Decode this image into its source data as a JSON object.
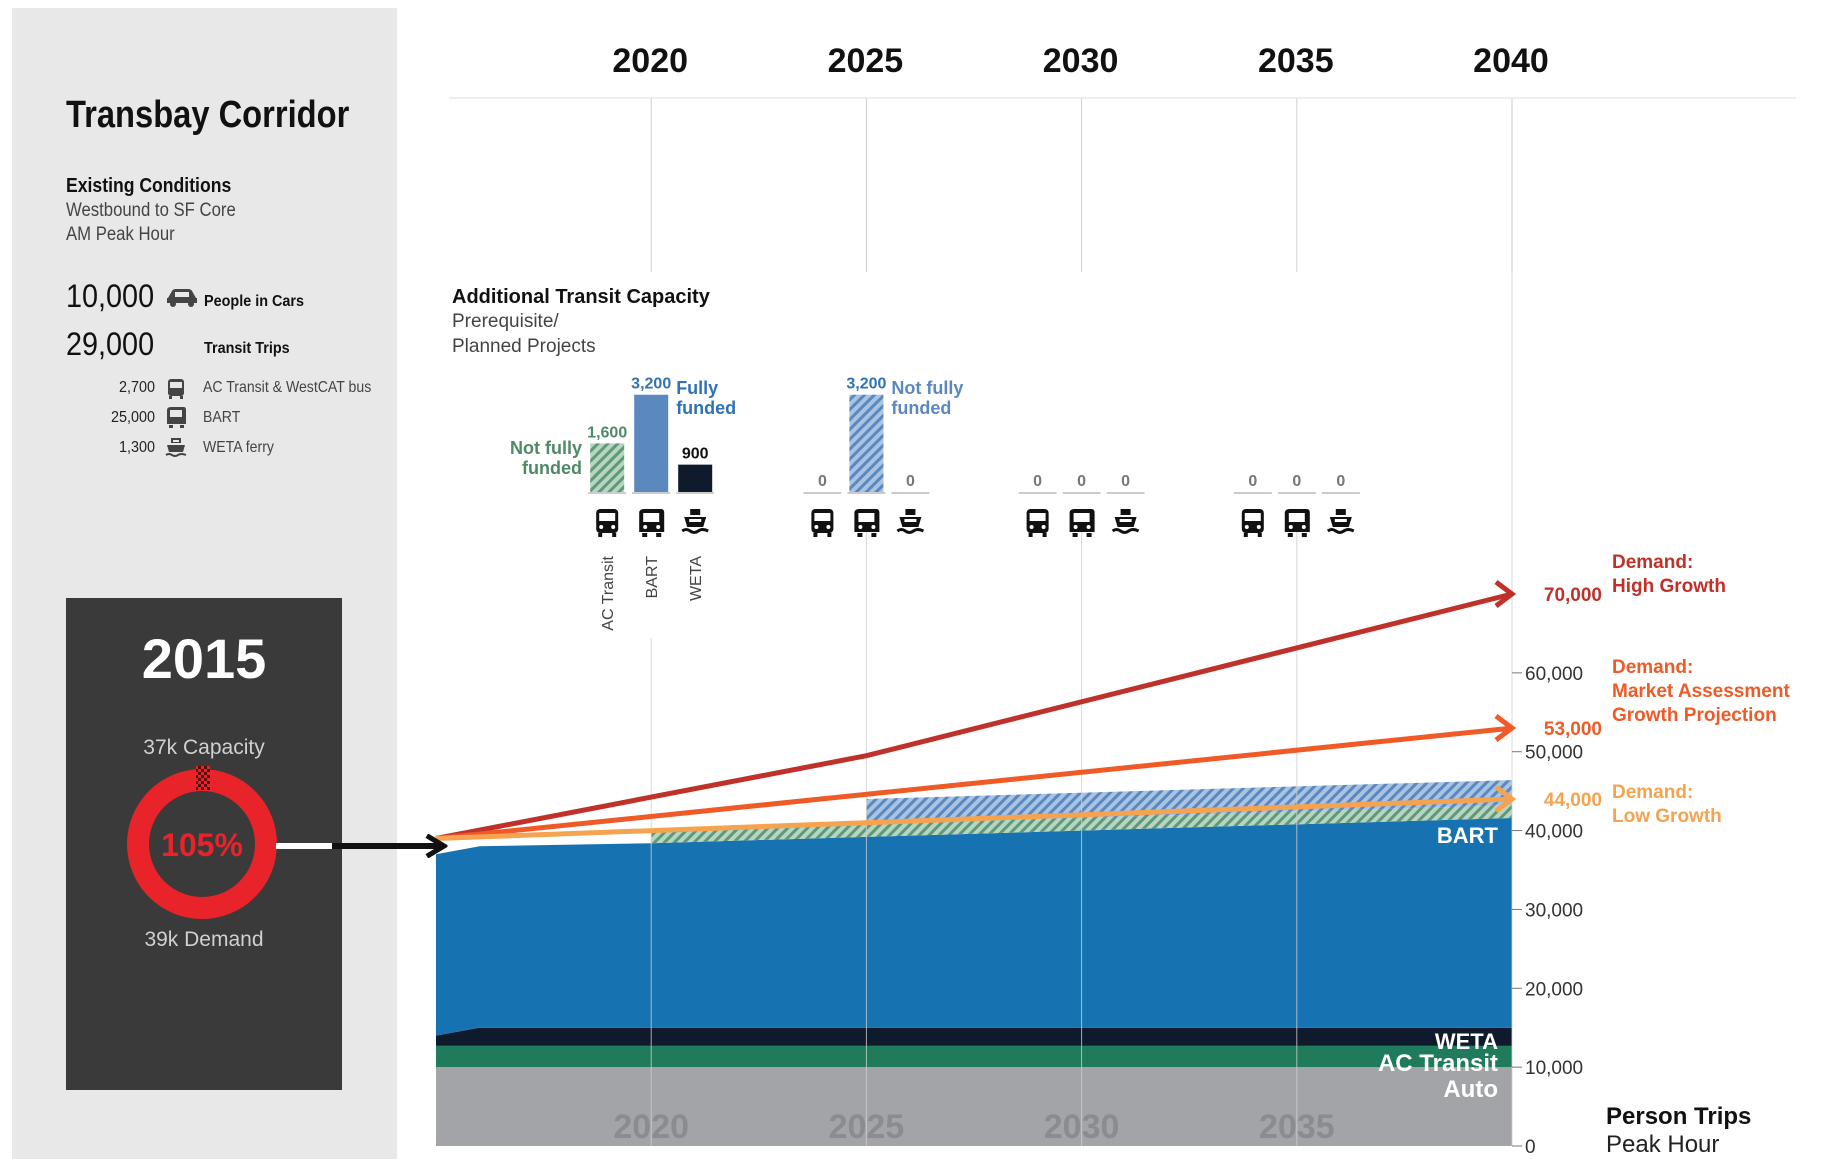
{
  "sidebar": {
    "title": "Transbay Corridor",
    "existing_title": "Existing Conditions",
    "existing_line1": "Westbound to SF Core",
    "existing_line2": "AM Peak Hour",
    "people_in_cars_value": "10,000",
    "people_in_cars_label": "People in Cars",
    "people_in_cars_icon": "car-icon",
    "transit_trips_value": "29,000",
    "transit_trips_label": "Transit Trips",
    "modes": [
      {
        "value": "2,700",
        "icon": "bus-icon",
        "label": "AC Transit & WestCAT bus"
      },
      {
        "value": "25,000",
        "icon": "train-icon",
        "label": "BART"
      },
      {
        "value": "1,300",
        "icon": "ferry-icon",
        "label": "WETA ferry"
      }
    ]
  },
  "box2015": {
    "year": "2015",
    "capacity_label": "37k Capacity",
    "percent": "105%",
    "demand_label": "39k Demand",
    "utilization": 1.05
  },
  "capacity_section": {
    "title": "Additional Transit Capacity",
    "subtitle1": "Prerequisite/",
    "subtitle2": "Planned Projects",
    "labels": {
      "not_fully_1": "Not fully",
      "funded": "funded",
      "fully": "Fully"
    },
    "mode_labels": [
      "AC Transit",
      "BART",
      "WETA"
    ]
  },
  "colors": {
    "bart": "#1772b1",
    "bart_light": "#5b89bf",
    "weta": "#0f1a2c",
    "ac_transit": "#207a5c",
    "ac_not_funded": "#5f9a78",
    "auto": "#a2a4a8",
    "high_growth": "#c0312a",
    "market": "#ef5a27",
    "low_growth": "#f6a34f",
    "panel": "#e8e8e8",
    "box": "#3a3a3a",
    "donut": "#e8232a"
  },
  "chart_data": [
    {
      "type": "bar",
      "title": "Additional Transit Capacity",
      "categories": [
        "2020",
        "2025",
        "2030",
        "2035"
      ],
      "series": [
        {
          "name": "AC Transit",
          "values": [
            1600,
            0,
            0,
            0
          ],
          "funding": [
            "Not fully funded",
            "",
            "",
            ""
          ]
        },
        {
          "name": "BART",
          "values": [
            3200,
            3200,
            0,
            0
          ],
          "funding": [
            "Fully funded",
            "Not fully funded",
            "",
            ""
          ]
        },
        {
          "name": "WETA",
          "values": [
            900,
            0,
            0,
            0
          ],
          "funding": [
            "",
            "",
            "",
            ""
          ]
        }
      ],
      "value_labels": [
        [
          "1,600",
          "3,200",
          "900"
        ],
        [
          "0",
          "3,200",
          "0"
        ],
        [
          "0",
          "0",
          "0"
        ],
        [
          "0",
          "0",
          "0"
        ]
      ]
    },
    {
      "type": "area",
      "xlabel": "",
      "ylabel": "Person Trips",
      "ylabel2": "Peak Hour",
      "x_ticks_top": [
        "2020",
        "2025",
        "2030",
        "2035",
        "2040"
      ],
      "x_ticks_bottom": [
        "2020",
        "2025",
        "2030",
        "2035"
      ],
      "xlim": [
        2015,
        2040
      ],
      "ylim": [
        0,
        70000
      ],
      "y_ticks": [
        "0",
        "10,000",
        "20,000",
        "30,000",
        "40,000",
        "50,000",
        "60,000"
      ],
      "layers": [
        {
          "name": "Auto",
          "color": "#a2a4a8",
          "x": [
            2015,
            2016,
            2040
          ],
          "values": [
            10000,
            10000,
            10000
          ]
        },
        {
          "name": "AC Transit",
          "color": "#207a5c",
          "x": [
            2015,
            2016,
            2040
          ],
          "values": [
            2700,
            2700,
            2700
          ]
        },
        {
          "name": "WETA",
          "color": "#0f1a2c",
          "x": [
            2015,
            2016,
            2040
          ],
          "values": [
            1300,
            2300,
            2300
          ]
        },
        {
          "name": "BART",
          "color": "#1772b1",
          "x": [
            2015,
            2016,
            2020,
            2040
          ],
          "values": [
            23000,
            23000,
            23400,
            26600
          ]
        },
        {
          "name": "AC Transit (Not fully funded)",
          "color": "#5f9a78",
          "x": [
            2020,
            2040
          ],
          "values": [
            1600,
            1600
          ]
        },
        {
          "name": "BART (Not fully funded)",
          "color": "#5b89bf",
          "x": [
            2025,
            2040
          ],
          "values": [
            3200,
            3200
          ]
        }
      ],
      "demand_lines": [
        {
          "name": "Demand: High Growth",
          "label_lines": [
            "Demand:",
            "High Growth"
          ],
          "value_label": "70,000",
          "color": "#c0312a",
          "x": [
            2015,
            2025,
            2040
          ],
          "y": [
            39000,
            49500,
            70000
          ]
        },
        {
          "name": "Demand: Market Assessment Growth Projection",
          "label_lines": [
            "Demand:",
            "Market Assessment",
            "Growth Projection"
          ],
          "value_label": "53,000",
          "color": "#ef5a27",
          "x": [
            2015,
            2040
          ],
          "y": [
            39000,
            53000
          ]
        },
        {
          "name": "Demand: Low Growth",
          "label_lines": [
            "Demand:",
            "Low Growth"
          ],
          "value_label": "44,000",
          "color": "#f6a34f",
          "x": [
            2015,
            2040
          ],
          "y": [
            39000,
            44000
          ]
        }
      ],
      "layer_labels": [
        "BART",
        "WETA",
        "AC Transit",
        "Auto"
      ]
    }
  ]
}
